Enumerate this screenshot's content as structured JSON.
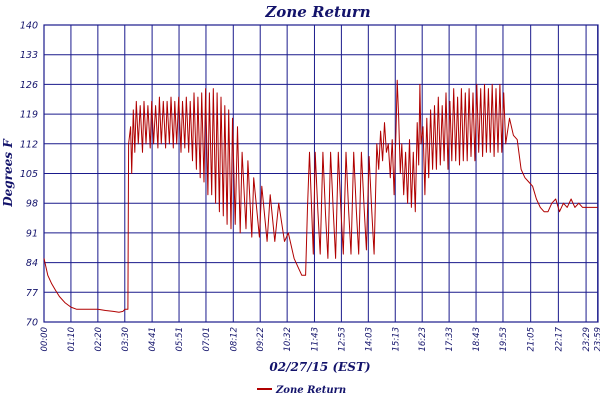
{
  "colors": {
    "grid": "#1a1a8c",
    "series": "#b00000",
    "text": "#13136b"
  },
  "chart_data": {
    "type": "line",
    "title": "Zone Return",
    "xlabel": "02/27/15 (EST)",
    "ylabel": "Degrees F",
    "yticks": [
      70,
      77,
      84,
      91,
      98,
      105,
      112,
      119,
      126,
      133,
      140
    ],
    "ylim": [
      70,
      140
    ],
    "xlim": [
      0,
      1440
    ],
    "xticks": [
      {
        "label": "00:00",
        "minutes": 0
      },
      {
        "label": "01:10",
        "minutes": 70
      },
      {
        "label": "02:20",
        "minutes": 140
      },
      {
        "label": "03:30",
        "minutes": 210
      },
      {
        "label": "04:41",
        "minutes": 281
      },
      {
        "label": "05:51",
        "minutes": 351
      },
      {
        "label": "07:01",
        "minutes": 421
      },
      {
        "label": "08:12",
        "minutes": 492
      },
      {
        "label": "09:22",
        "minutes": 562
      },
      {
        "label": "10:32",
        "minutes": 632
      },
      {
        "label": "11:43",
        "minutes": 703
      },
      {
        "label": "12:53",
        "minutes": 773
      },
      {
        "label": "14:03",
        "minutes": 843
      },
      {
        "label": "15:13",
        "minutes": 913
      },
      {
        "label": "16:23",
        "minutes": 983
      },
      {
        "label": "17:33",
        "minutes": 1053
      },
      {
        "label": "18:43",
        "minutes": 1123
      },
      {
        "label": "19:53",
        "minutes": 1193
      },
      {
        "label": "21:05",
        "minutes": 1265
      },
      {
        "label": "22:17",
        "minutes": 1337
      },
      {
        "label": "23:29",
        "minutes": 1409
      },
      {
        "label": "23:59",
        "minutes": 1439
      }
    ],
    "grid": true,
    "legend_position": "bottom-left",
    "series": [
      {
        "name": "Zone Return",
        "color": "#b00000",
        "points": [
          [
            0,
            85
          ],
          [
            10,
            81
          ],
          [
            20,
            79
          ],
          [
            30,
            77.5
          ],
          [
            40,
            76
          ],
          [
            55,
            74.5
          ],
          [
            70,
            73.5
          ],
          [
            85,
            73
          ],
          [
            100,
            73
          ],
          [
            120,
            73
          ],
          [
            140,
            73
          ],
          [
            160,
            72.7
          ],
          [
            180,
            72.5
          ],
          [
            195,
            72.3
          ],
          [
            205,
            72.5
          ],
          [
            210,
            73
          ],
          [
            218,
            73
          ],
          [
            220,
            112
          ],
          [
            225,
            116
          ],
          [
            228,
            105
          ],
          [
            232,
            120
          ],
          [
            236,
            110
          ],
          [
            240,
            122
          ],
          [
            245,
            112
          ],
          [
            250,
            121
          ],
          [
            256,
            110
          ],
          [
            260,
            122
          ],
          [
            265,
            112
          ],
          [
            270,
            121
          ],
          [
            276,
            111
          ],
          [
            280,
            122
          ],
          [
            285,
            112
          ],
          [
            290,
            121
          ],
          [
            296,
            111
          ],
          [
            300,
            123
          ],
          [
            305,
            112
          ],
          [
            310,
            122
          ],
          [
            316,
            111
          ],
          [
            320,
            122
          ],
          [
            326,
            112
          ],
          [
            330,
            123
          ],
          [
            336,
            111
          ],
          [
            340,
            122
          ],
          [
            345,
            112
          ],
          [
            350,
            123
          ],
          [
            356,
            110
          ],
          [
            360,
            122
          ],
          [
            366,
            111
          ],
          [
            370,
            123
          ],
          [
            376,
            110
          ],
          [
            380,
            122
          ],
          [
            386,
            108
          ],
          [
            390,
            124
          ],
          [
            396,
            106
          ],
          [
            400,
            123
          ],
          [
            406,
            104
          ],
          [
            410,
            124
          ],
          [
            416,
            103
          ],
          [
            420,
            125
          ],
          [
            426,
            100
          ],
          [
            430,
            124
          ],
          [
            436,
            100
          ],
          [
            440,
            125
          ],
          [
            446,
            98
          ],
          [
            450,
            124
          ],
          [
            456,
            96
          ],
          [
            460,
            123
          ],
          [
            466,
            95
          ],
          [
            470,
            121
          ],
          [
            476,
            93
          ],
          [
            480,
            120
          ],
          [
            486,
            92
          ],
          [
            490,
            118
          ],
          [
            497,
            93
          ],
          [
            503,
            116
          ],
          [
            510,
            91
          ],
          [
            515,
            110
          ],
          [
            525,
            92
          ],
          [
            530,
            108
          ],
          [
            540,
            90
          ],
          [
            545,
            104
          ],
          [
            560,
            90
          ],
          [
            566,
            102
          ],
          [
            580,
            89
          ],
          [
            588,
            100
          ],
          [
            600,
            89
          ],
          [
            610,
            98
          ],
          [
            625,
            89
          ],
          [
            635,
            91
          ],
          [
            650,
            85
          ],
          [
            660,
            83
          ],
          [
            670,
            81
          ],
          [
            680,
            81
          ],
          [
            685,
            97
          ],
          [
            690,
            110
          ],
          [
            695,
            98
          ],
          [
            700,
            86
          ],
          [
            705,
            110
          ],
          [
            712,
            96
          ],
          [
            718,
            86
          ],
          [
            725,
            110
          ],
          [
            732,
            95
          ],
          [
            738,
            85
          ],
          [
            745,
            110
          ],
          [
            752,
            96
          ],
          [
            758,
            85
          ],
          [
            765,
            110
          ],
          [
            772,
            96
          ],
          [
            778,
            86
          ],
          [
            785,
            110
          ],
          [
            792,
            96
          ],
          [
            798,
            86
          ],
          [
            805,
            110
          ],
          [
            812,
            96
          ],
          [
            818,
            86
          ],
          [
            825,
            110
          ],
          [
            832,
            97
          ],
          [
            838,
            87
          ],
          [
            845,
            109
          ],
          [
            852,
            96
          ],
          [
            858,
            86
          ],
          [
            865,
            112
          ],
          [
            870,
            106
          ],
          [
            875,
            115
          ],
          [
            880,
            108
          ],
          [
            885,
            117
          ],
          [
            890,
            110
          ],
          [
            895,
            112
          ],
          [
            900,
            104
          ],
          [
            905,
            113
          ],
          [
            910,
            100
          ],
          [
            915,
            115
          ],
          [
            918,
            127
          ],
          [
            922,
            118
          ],
          [
            926,
            105
          ],
          [
            930,
            112
          ],
          [
            935,
            100
          ],
          [
            940,
            110
          ],
          [
            945,
            98
          ],
          [
            950,
            113
          ],
          [
            955,
            97
          ],
          [
            960,
            110
          ],
          [
            965,
            96
          ],
          [
            970,
            117
          ],
          [
            974,
            107
          ],
          [
            977,
            126
          ],
          [
            980,
            112
          ],
          [
            985,
            116
          ],
          [
            990,
            100
          ],
          [
            995,
            118
          ],
          [
            1000,
            104
          ],
          [
            1005,
            120
          ],
          [
            1010,
            106
          ],
          [
            1015,
            121
          ],
          [
            1020,
            106
          ],
          [
            1025,
            123
          ],
          [
            1030,
            107
          ],
          [
            1035,
            121
          ],
          [
            1040,
            108
          ],
          [
            1045,
            124
          ],
          [
            1050,
            106
          ],
          [
            1055,
            122
          ],
          [
            1060,
            108
          ],
          [
            1065,
            125
          ],
          [
            1070,
            108
          ],
          [
            1075,
            123
          ],
          [
            1080,
            107
          ],
          [
            1085,
            125
          ],
          [
            1090,
            108
          ],
          [
            1095,
            124
          ],
          [
            1100,
            108
          ],
          [
            1105,
            125
          ],
          [
            1110,
            109
          ],
          [
            1115,
            124
          ],
          [
            1120,
            108
          ],
          [
            1125,
            126
          ],
          [
            1130,
            110
          ],
          [
            1135,
            125
          ],
          [
            1140,
            109
          ],
          [
            1145,
            126
          ],
          [
            1150,
            110
          ],
          [
            1155,
            125
          ],
          [
            1160,
            110
          ],
          [
            1165,
            126
          ],
          [
            1170,
            109
          ],
          [
            1175,
            125
          ],
          [
            1180,
            110
          ],
          [
            1185,
            126
          ],
          [
            1190,
            110
          ],
          [
            1195,
            124
          ],
          [
            1200,
            112
          ],
          [
            1210,
            118
          ],
          [
            1220,
            114
          ],
          [
            1230,
            113
          ],
          [
            1240,
            106
          ],
          [
            1250,
            104
          ],
          [
            1260,
            103
          ],
          [
            1270,
            102
          ],
          [
            1280,
            99
          ],
          [
            1290,
            97
          ],
          [
            1300,
            96
          ],
          [
            1310,
            96
          ],
          [
            1320,
            98
          ],
          [
            1330,
            99
          ],
          [
            1340,
            96
          ],
          [
            1350,
            98
          ],
          [
            1360,
            97
          ],
          [
            1370,
            99
          ],
          [
            1380,
            97
          ],
          [
            1390,
            98
          ],
          [
            1400,
            97
          ],
          [
            1410,
            97
          ],
          [
            1420,
            97
          ],
          [
            1430,
            97
          ],
          [
            1439,
            97
          ]
        ]
      }
    ]
  }
}
